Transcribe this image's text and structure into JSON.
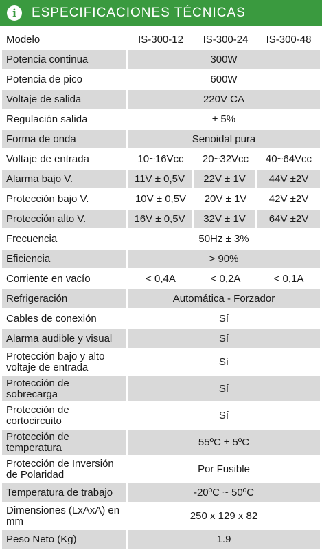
{
  "header": {
    "icon": "info-icon",
    "title": "ESPECIFICACIONES TÉCNICAS"
  },
  "rows": [
    {
      "label": "Modelo",
      "values": [
        "IS-300-12",
        "IS-300-24",
        "IS-300-48"
      ]
    },
    {
      "label": "Potencia continua",
      "values": [
        "300W"
      ]
    },
    {
      "label": "Potencia de pico",
      "values": [
        "600W"
      ]
    },
    {
      "label": "Voltaje de salida",
      "values": [
        "220V CA"
      ]
    },
    {
      "label": "Regulación salida",
      "values": [
        "± 5%"
      ]
    },
    {
      "label": "Forma de onda",
      "values": [
        "Senoidal pura"
      ]
    },
    {
      "label": "Voltaje de entrada",
      "values": [
        "10~16Vcc",
        "20~32Vcc",
        "40~64Vcc"
      ]
    },
    {
      "label": "Alarma bajo V.",
      "values": [
        "11V ± 0,5V",
        "22V ± 1V",
        "44V ±2V"
      ]
    },
    {
      "label": "Protección bajo V.",
      "values": [
        "10V ± 0,5V",
        "20V ± 1V",
        "42V ±2V"
      ]
    },
    {
      "label": "Protección alto V.",
      "values": [
        "16V ± 0,5V",
        "32V ± 1V",
        "64V ±2V"
      ]
    },
    {
      "label": "Frecuencia",
      "values": [
        "50Hz ± 3%"
      ]
    },
    {
      "label": "Eficiencia",
      "values": [
        "> 90%"
      ]
    },
    {
      "label": "Corriente en vacío",
      "values": [
        "< 0,4A",
        "< 0,2A",
        "< 0,1A"
      ]
    },
    {
      "label": "Refrigeración",
      "values": [
        "Automática - Forzador"
      ]
    },
    {
      "label": "Cables de conexión",
      "values": [
        "Sí"
      ]
    },
    {
      "label": "Alarma audible y visual",
      "values": [
        "Sí"
      ]
    },
    {
      "label": "Protección bajo y alto voltaje de entrada",
      "values": [
        "Sí"
      ]
    },
    {
      "label": "Protección de sobrecarga",
      "values": [
        "Sí"
      ]
    },
    {
      "label": "Protección de cortocircuito",
      "values": [
        "Sí"
      ]
    },
    {
      "label": "Protección de temperatura",
      "values": [
        "55ºC ± 5ºC"
      ]
    },
    {
      "label": "Protección de Inversión de Polaridad",
      "values": [
        "Por Fusible"
      ]
    },
    {
      "label": "Temperatura de trabajo",
      "values": [
        "-20ºC ~ 50ºC"
      ]
    },
    {
      "label": "Dimensiones (LxAxA) en mm",
      "values": [
        "250 x 129 x 82"
      ]
    },
    {
      "label": "Peso Neto (Kg)",
      "values": [
        "1.9"
      ]
    }
  ],
  "colors": {
    "header_bg": "#3a9a3f",
    "row_shade": "#d9d9d9"
  }
}
